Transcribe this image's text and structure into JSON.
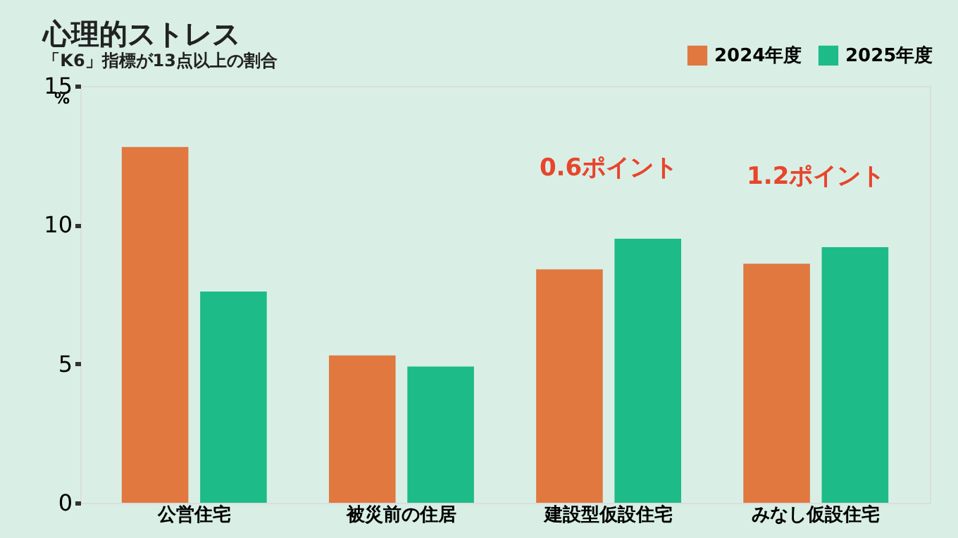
{
  "chart_data": {
    "type": "bar",
    "title": "心理的ストレス",
    "subtitle": "「K6」指標が13点以上の割合",
    "ylabel": "%",
    "categories": [
      "公営住宅",
      "被災前の住居",
      "建設型仮設住宅",
      "みなし仮設住宅"
    ],
    "series": [
      {
        "name": "2024年度",
        "color": "#e07840",
        "values": [
          12.8,
          5.3,
          8.4,
          8.6
        ]
      },
      {
        "name": "2025年度",
        "color": "#1dbb87",
        "values": [
          7.6,
          4.9,
          9.5,
          9.2
        ]
      }
    ],
    "ylim": [
      0,
      15
    ],
    "yticks": [
      0,
      5,
      10,
      15
    ],
    "grid": false,
    "legend": "top right",
    "annotations": [
      {
        "text": "0.6ポイント",
        "x": "建設型仮設住宅",
        "y": 9.5
      },
      {
        "text": "1.2ポイント",
        "x": "みなし仮設住宅",
        "y": 9.2
      }
    ]
  }
}
